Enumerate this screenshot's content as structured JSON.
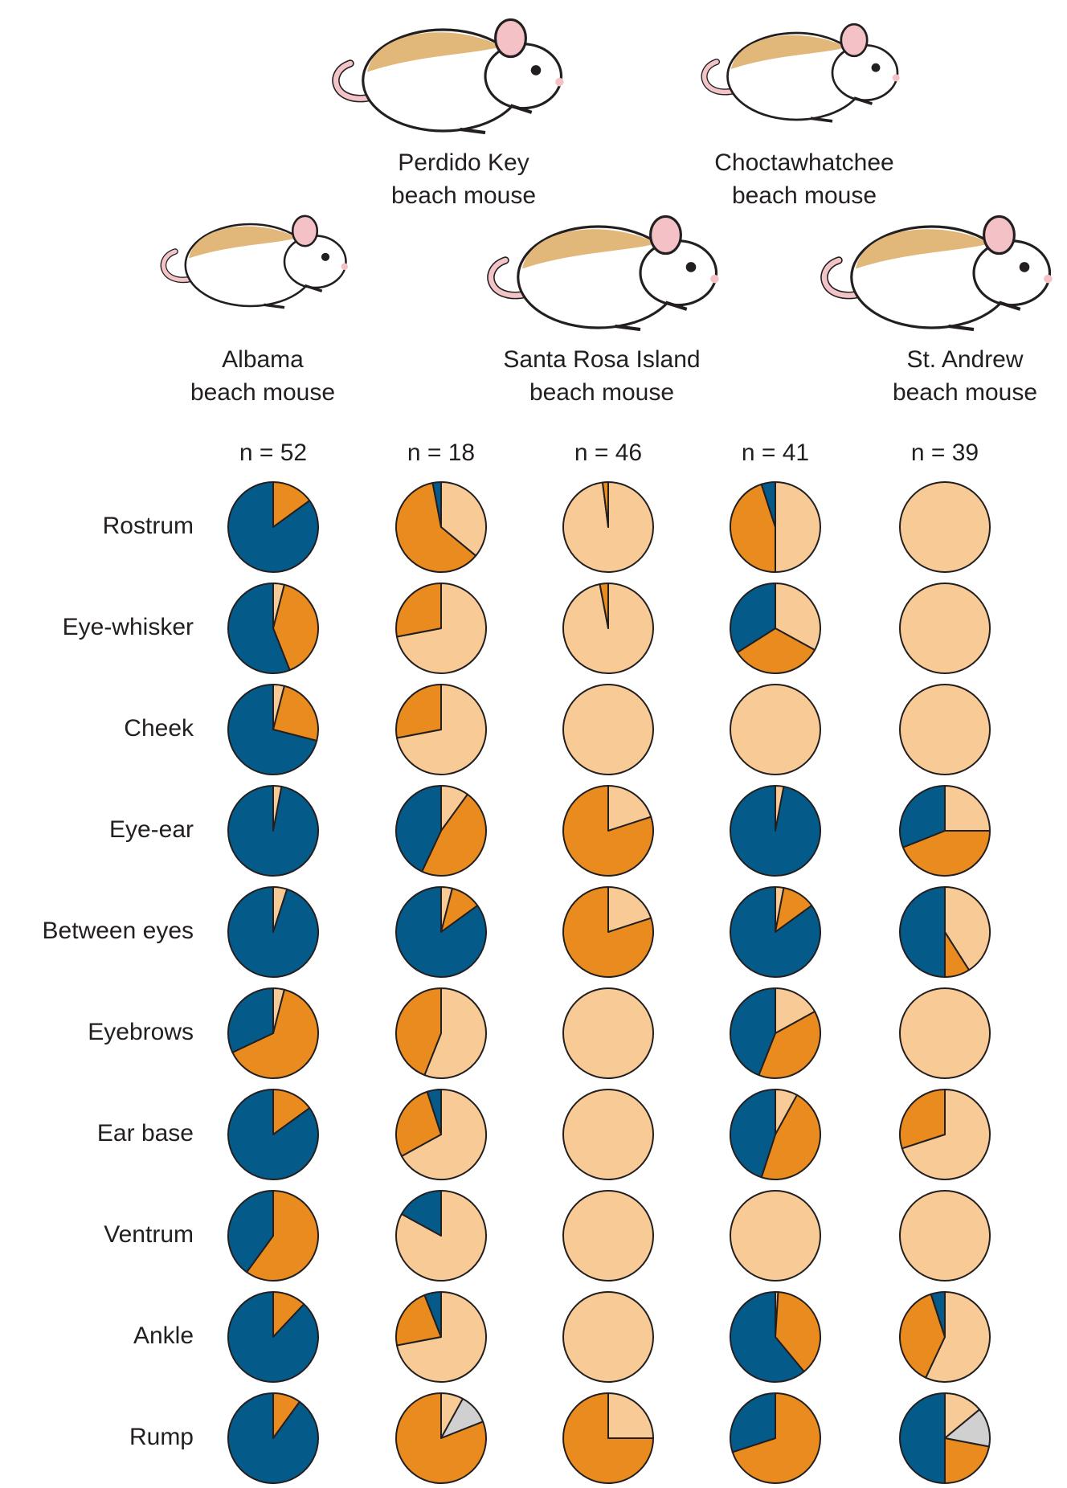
{
  "chart_data": {
    "type": "pie",
    "colors": [
      "#f8cb96",
      "#d0d0d0",
      "#e98b1f",
      "#045b8a"
    ],
    "rows": [
      "Rostrum",
      "Eye-whisker",
      "Cheek",
      "Eye-ear",
      "Between eyes",
      "Eyebrows",
      "Ear base",
      "Ventrum",
      "Ankle",
      "Rump"
    ],
    "columns": [
      {
        "name": [
          "Albama",
          "beach mouse"
        ],
        "n_label": "n = 52",
        "pies": [
          [
            0,
            0,
            15,
            85
          ],
          [
            4,
            0,
            40,
            56
          ],
          [
            4,
            0,
            25,
            71
          ],
          [
            3,
            0,
            0,
            97
          ],
          [
            5,
            0,
            0,
            95
          ],
          [
            4,
            0,
            64,
            32
          ],
          [
            0,
            0,
            15,
            85
          ],
          [
            0,
            0,
            60,
            40
          ],
          [
            0,
            0,
            12,
            88
          ],
          [
            0,
            0,
            10,
            90
          ]
        ]
      },
      {
        "name": [
          "Perdido Key",
          "beach mouse"
        ],
        "n_label": "n = 18",
        "pies": [
          [
            36,
            0,
            61,
            3
          ],
          [
            72,
            0,
            28,
            0
          ],
          [
            72,
            0,
            28,
            0
          ],
          [
            10,
            0,
            47,
            43
          ],
          [
            4,
            0,
            11,
            85
          ],
          [
            56,
            0,
            44,
            0
          ],
          [
            67,
            0,
            28,
            5
          ],
          [
            83,
            0,
            0,
            17
          ],
          [
            72,
            0,
            22,
            6
          ],
          [
            8,
            11,
            81,
            0
          ]
        ]
      },
      {
        "name": [
          "Santa Rosa Island",
          "beach mouse"
        ],
        "n_label": "n = 46",
        "pies": [
          [
            98,
            0,
            2,
            0
          ],
          [
            97,
            0,
            3,
            0
          ],
          [
            100,
            0,
            0,
            0
          ],
          [
            20,
            0,
            80,
            0
          ],
          [
            20,
            0,
            80,
            0
          ],
          [
            100,
            0,
            0,
            0
          ],
          [
            100,
            0,
            0,
            0
          ],
          [
            100,
            0,
            0,
            0
          ],
          [
            100,
            0,
            0,
            0
          ],
          [
            25,
            0,
            75,
            0
          ]
        ]
      },
      {
        "name": [
          "Choctawhatchee",
          "beach mouse"
        ],
        "n_label": "n = 41",
        "pies": [
          [
            50,
            0,
            45,
            5
          ],
          [
            33,
            0,
            33,
            34
          ],
          [
            100,
            0,
            0,
            0
          ],
          [
            3,
            0,
            0,
            97
          ],
          [
            3,
            0,
            12,
            85
          ],
          [
            17,
            0,
            39,
            44
          ],
          [
            8,
            0,
            47,
            45
          ],
          [
            100,
            0,
            0,
            0
          ],
          [
            1,
            0,
            38,
            61
          ],
          [
            0,
            0,
            70,
            30
          ]
        ]
      },
      {
        "name": [
          "St. Andrew",
          "beach mouse"
        ],
        "n_label": "n = 39",
        "pies": [
          [
            100,
            0,
            0,
            0
          ],
          [
            100,
            0,
            0,
            0
          ],
          [
            100,
            0,
            0,
            0
          ],
          [
            25,
            0,
            44,
            31
          ],
          [
            41,
            0,
            9,
            50
          ],
          [
            100,
            0,
            0,
            0
          ],
          [
            70,
            0,
            30,
            0
          ],
          [
            100,
            0,
            0,
            0
          ],
          [
            57,
            0,
            38,
            5
          ],
          [
            14,
            14,
            22,
            50
          ]
        ]
      }
    ]
  }
}
